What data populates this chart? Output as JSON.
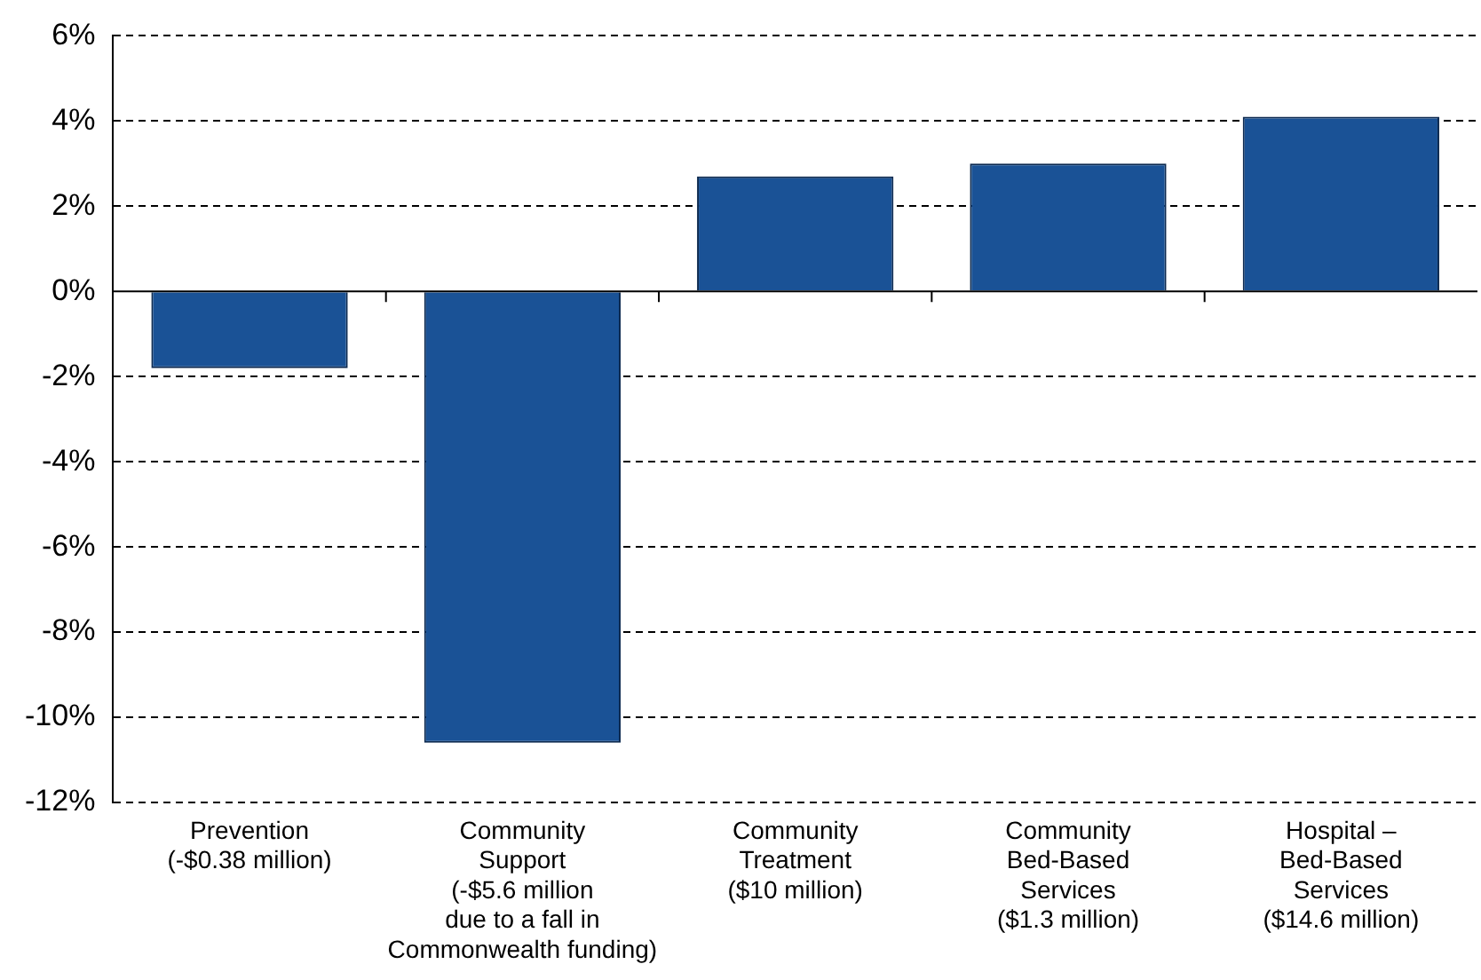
{
  "chart_data": {
    "type": "bar",
    "categories": [
      "Prevention\n(-$0.38 million)",
      "Community\nSupport\n(-$5.6 million\ndue to a fall in\nCommonwealth funding)",
      "Community\nTreatment\n($10 million)",
      "Community\nBed-Based\nServices\n($1.3 million)",
      "Hospital –\nBed-Based\nServices\n($14.6 million)"
    ],
    "values": [
      -1.8,
      -10.6,
      2.7,
      3.0,
      4.1
    ],
    "color": "#1a5296",
    "ylim": [
      -12,
      6
    ],
    "yticks": [
      {
        "value": -12,
        "label": "-12%"
      },
      {
        "value": -10,
        "label": "-10%"
      },
      {
        "value": -8,
        "label": "-8%"
      },
      {
        "value": -6,
        "label": "-6%"
      },
      {
        "value": -4,
        "label": "-4%"
      },
      {
        "value": -2,
        "label": "-2%"
      },
      {
        "value": 0,
        "label": "0%"
      },
      {
        "value": 2,
        "label": "2%"
      },
      {
        "value": 4,
        "label": "4%"
      },
      {
        "value": 6,
        "label": "6%"
      }
    ],
    "grid": "y",
    "legend": false
  }
}
